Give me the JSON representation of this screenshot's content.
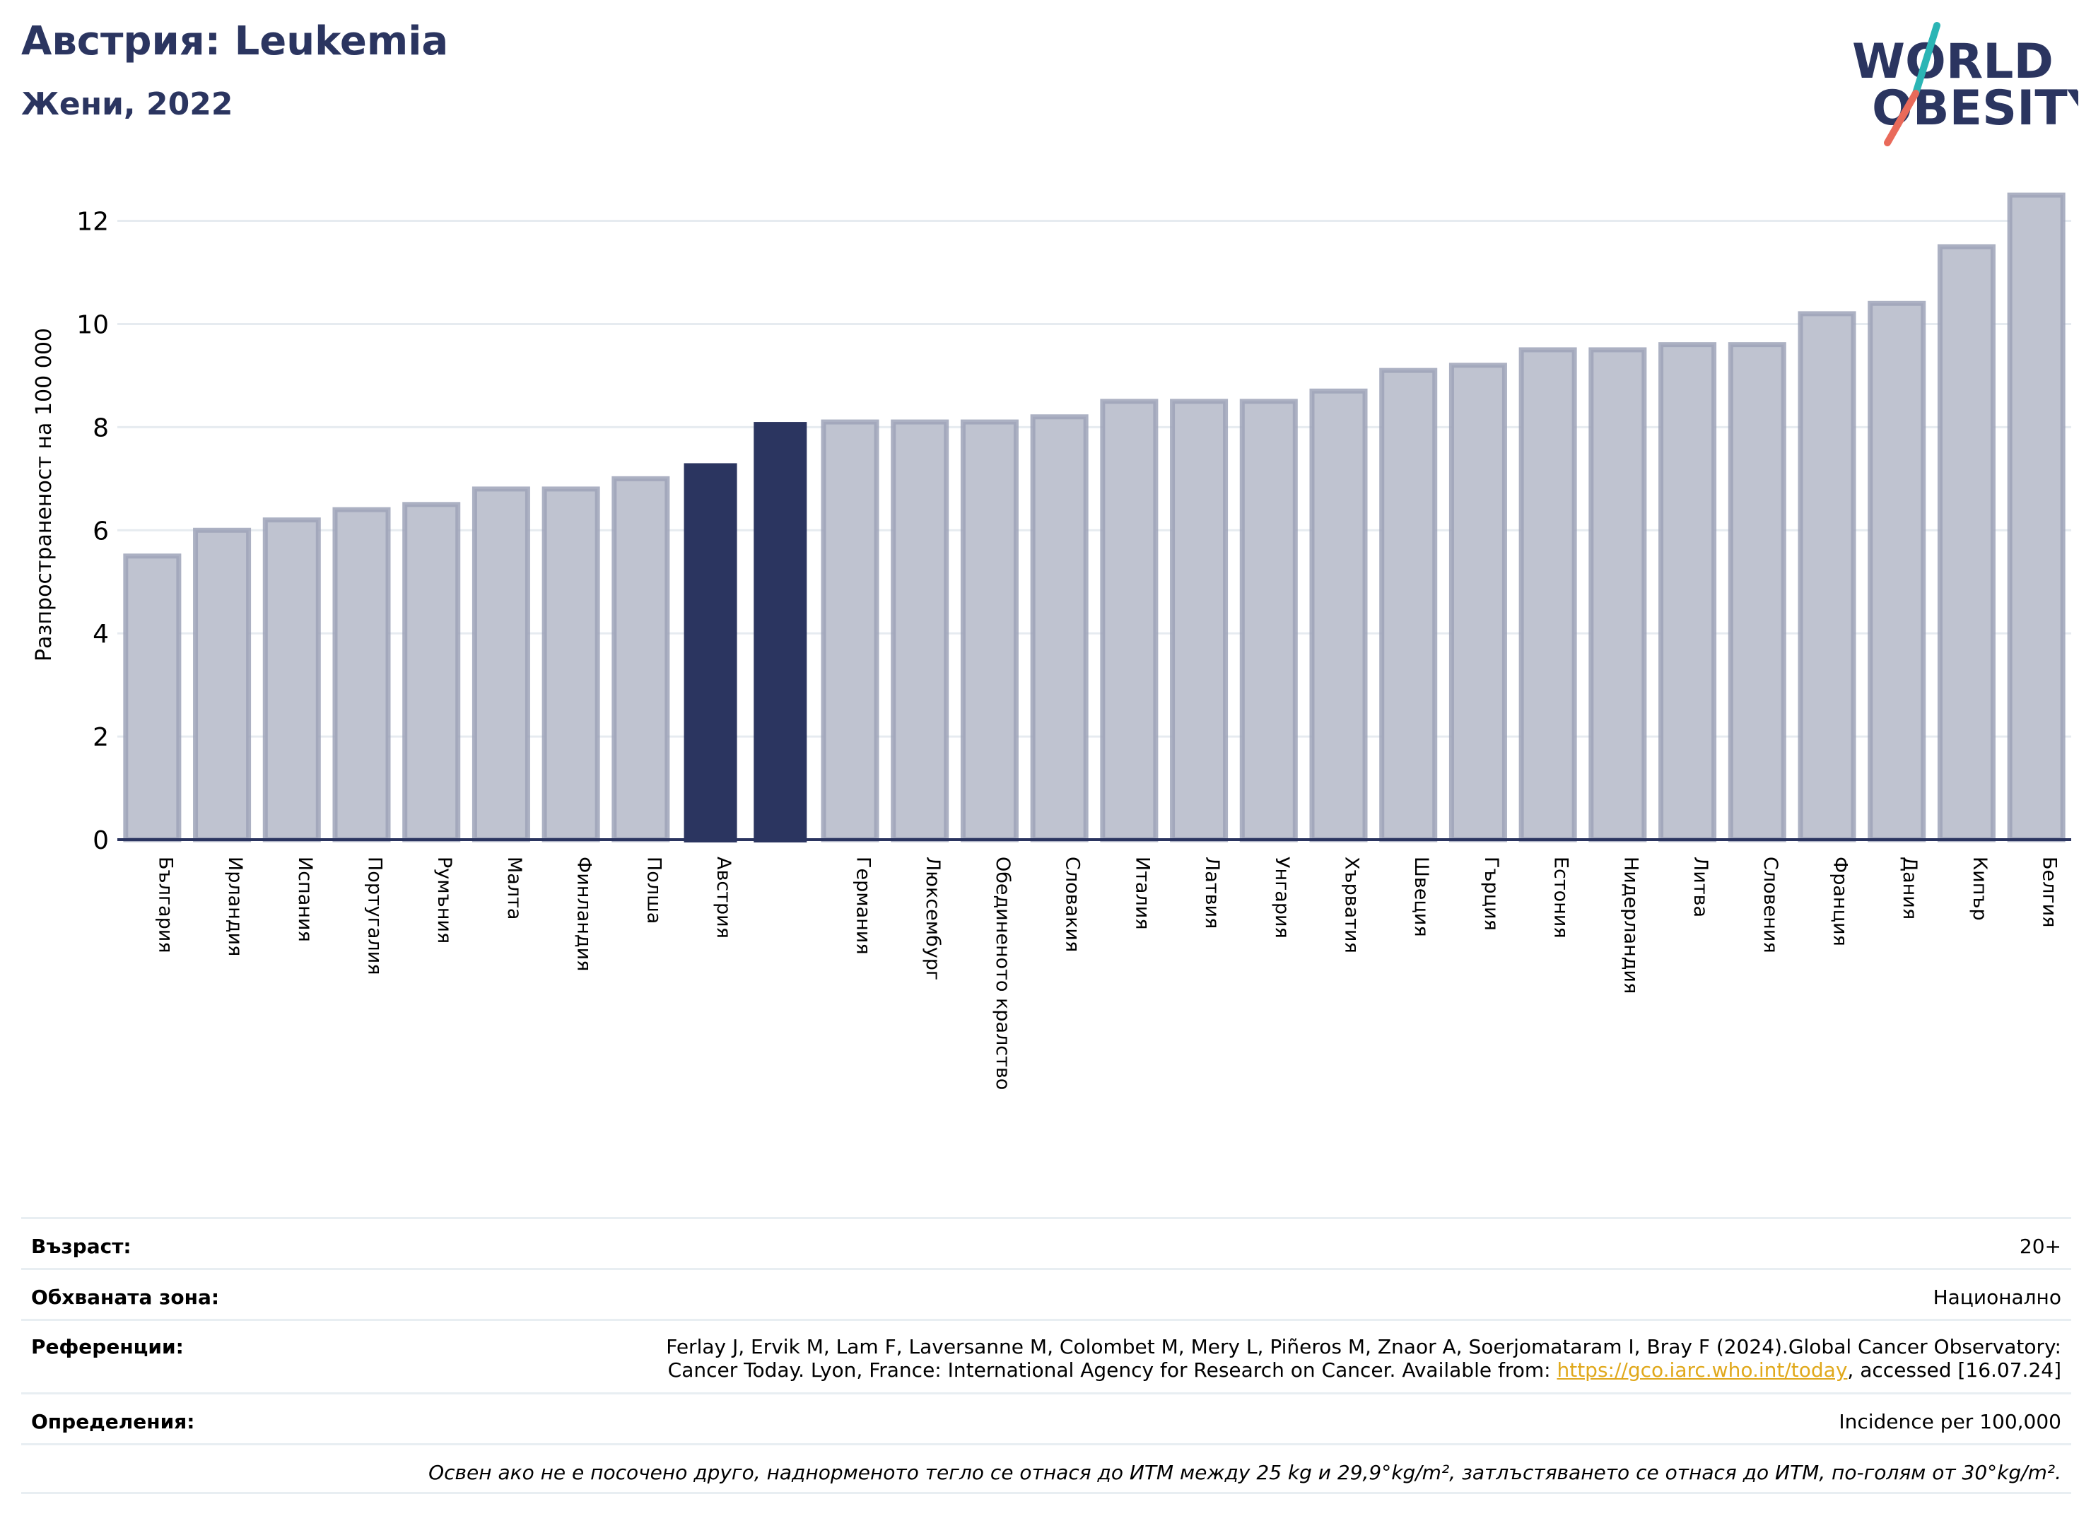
{
  "header": {
    "title": "Австрия: Leukemia",
    "subtitle": "Жени, 2022"
  },
  "logo": {
    "line1": "WORLD",
    "line2": "OBESITY",
    "colors": {
      "navy": "#2b3560",
      "teal": "#2bb5b5",
      "coral": "#e96a5a"
    }
  },
  "colors": {
    "bar": "#bfc3d0",
    "bar_stroke": "#9ea3b8",
    "highlight": "#2b3560",
    "grid": "#e6ebf0",
    "axis": "#2b3560"
  },
  "chart_data": {
    "type": "bar",
    "ylabel": "Разпространеност  на 100 000",
    "ylim": [
      0,
      13.2
    ],
    "yticks": [
      0,
      2,
      4,
      6,
      8,
      10,
      12
    ],
    "grid": true,
    "categories": [
      "България",
      "Ирландия",
      "Испания",
      "Португалия",
      "Румъния",
      "Малта",
      "Финландия",
      "Полша",
      "Австрия",
      "",
      "Германия",
      "Люксембург",
      "Обединеното кралство",
      "Словакия",
      "Италия",
      "Латвия",
      "Унгария",
      "Хърватия",
      "Швеция",
      "Гърция",
      "Естония",
      "Нидерландия",
      "Литва",
      "Словения",
      "Франция",
      "Дания",
      "Кипър",
      "Белгия"
    ],
    "values": [
      5.5,
      6.0,
      6.2,
      6.4,
      6.5,
      6.8,
      6.8,
      7.0,
      7.3,
      8.1,
      8.1,
      8.1,
      8.1,
      8.2,
      8.5,
      8.5,
      8.5,
      8.7,
      9.1,
      9.2,
      9.5,
      9.5,
      9.6,
      9.6,
      10.2,
      10.4,
      11.5,
      12.5
    ],
    "highlight": [
      8,
      9
    ]
  },
  "info": {
    "age_label": "Възраст:",
    "age_value": "20+",
    "coverage_label": "Обхваната зона:",
    "coverage_value": "Национално",
    "references_label": "Референции:",
    "references_line1": "Ferlay J, Ervik M, Lam F, Laversanne M, Colombet M, Mery L, Piñeros M, Znaor A, Soerjomataram I, Bray F (2024).Global Cancer Observatory:",
    "references_line2_pre": "Cancer Today. Lyon, France: International Agency for Research on Cancer. Available from: ",
    "references_link": "https://gco.iarc.who.int/today",
    "references_line2_post": ", accessed [16.07.24]",
    "definitions_label": "Определения:",
    "definitions_value": "Incidence per 100,000",
    "note": "Освен ако не е посочено друго, наднорменото тегло се отнася до ИТМ между 25 kg и 29,9°kg/m², затлъстяването се отнася до ИТМ, по-голям от 30°kg/m²."
  }
}
